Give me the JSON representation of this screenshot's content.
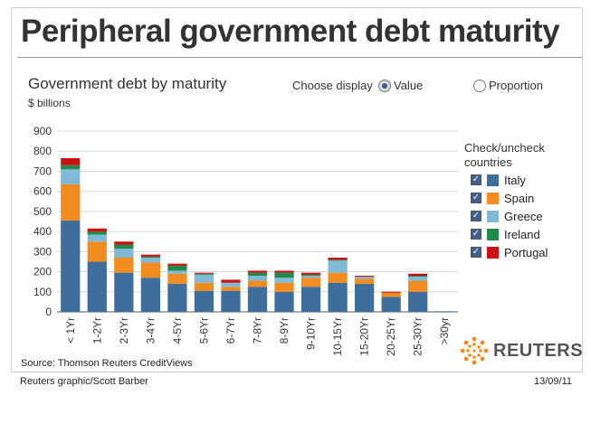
{
  "header": {
    "title": "Peripheral government debt maturity"
  },
  "controls": {
    "choose_label": "Choose display",
    "value_label": "Value",
    "proportion_label": "Proportion",
    "selected": "Value"
  },
  "legend": {
    "title": "Check/uncheck countries",
    "check_glyph": "✓",
    "items": [
      {
        "label": "Italy",
        "color": "#3e6e9c",
        "checked": true
      },
      {
        "label": "Spain",
        "color": "#f28c1e",
        "checked": true
      },
      {
        "label": "Greece",
        "color": "#7fb9d5",
        "checked": true
      },
      {
        "label": "Ireland",
        "color": "#1f8a4c",
        "checked": true
      },
      {
        "label": "Portugal",
        "color": "#cc1010",
        "checked": true
      }
    ]
  },
  "footer": {
    "source": "Source: Thomson Reuters CreditViews",
    "brand": "REUTERS",
    "credit": "Reuters graphic/Scott Barber",
    "date": "13/09/11"
  },
  "chart_data": {
    "type": "bar",
    "stacked": true,
    "title": "Government debt by maturity",
    "ylabel": "$ billions",
    "xlabel": "",
    "ylim": [
      0,
      900
    ],
    "yticks": [
      0,
      100,
      200,
      300,
      400,
      500,
      600,
      700,
      800,
      900
    ],
    "grid": true,
    "categories": [
      "< 1Yr",
      "1-2Yr",
      "2-3Yr",
      "3-4Yr",
      "4-5Yr",
      "5-6Yr",
      "6-7Yr",
      "7-8Yr",
      "8-9Yr",
      "9-10Yr",
      "10-15Yr",
      "15-20Yr",
      "20-25Yr",
      "25-30Yr",
      ">30yr"
    ],
    "series": [
      {
        "name": "Italy",
        "color": "#3e6e9c",
        "values": [
          455,
          250,
          195,
          170,
          140,
          105,
          105,
          125,
          100,
          125,
          145,
          140,
          75,
          100,
          3
        ]
      },
      {
        "name": "Spain",
        "color": "#f28c1e",
        "values": [
          180,
          100,
          75,
          75,
          50,
          40,
          20,
          30,
          45,
          45,
          50,
          25,
          20,
          55,
          0
        ]
      },
      {
        "name": "Greece",
        "color": "#7fb9d5",
        "values": [
          75,
          35,
          45,
          25,
          15,
          40,
          20,
          25,
          25,
          10,
          60,
          10,
          0,
          20,
          0
        ]
      },
      {
        "name": "Ireland",
        "color": "#1f8a4c",
        "values": [
          20,
          15,
          20,
          5,
          25,
          5,
          0,
          15,
          25,
          5,
          5,
          0,
          0,
          5,
          0
        ]
      },
      {
        "name": "Portugal",
        "color": "#cc1010",
        "values": [
          35,
          15,
          15,
          10,
          10,
          5,
          15,
          10,
          10,
          10,
          10,
          5,
          5,
          10,
          0
        ]
      }
    ]
  }
}
